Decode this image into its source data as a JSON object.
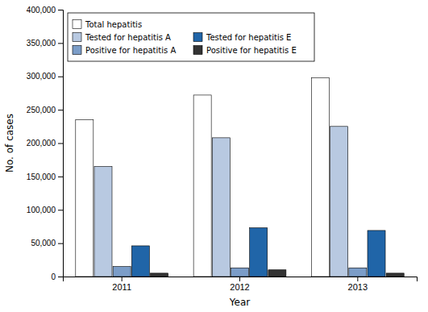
{
  "chart_data": {
    "type": "bar",
    "xlabel": "Year",
    "ylabel": "No. of cases",
    "categories": [
      "2011",
      "2012",
      "2013"
    ],
    "series": [
      {
        "name": "Total hepatitis",
        "color": "#ffffff",
        "values": [
          235000,
          272000,
          298000
        ]
      },
      {
        "name": "Tested for hepatitis A",
        "color": "#b8c9e1",
        "values": [
          165000,
          208000,
          225000
        ]
      },
      {
        "name": "Positive for hepatitis A",
        "color": "#7b9dc8",
        "values": [
          15000,
          13000,
          13000
        ]
      },
      {
        "name": "Tested for hepatitis E",
        "color": "#2065a8",
        "values": [
          46000,
          73000,
          69000
        ]
      },
      {
        "name": "Positive for hepatitis E",
        "color": "#333333",
        "values": [
          5000,
          10000,
          5000
        ]
      }
    ],
    "ylim": [
      0,
      400000
    ],
    "yticks": [
      0,
      {
        "value": 50000,
        "label": "50,000"
      },
      {
        "value": 100000,
        "label": "100,000"
      },
      {
        "value": 150000,
        "label": "150,000"
      },
      {
        "value": 200000,
        "label": "200,000"
      },
      {
        "value": 250000,
        "label": "250,000"
      },
      {
        "value": 300000,
        "label": "300,000"
      },
      {
        "value": 350000,
        "label": "350,000"
      },
      {
        "value": 400000,
        "label": "400,000"
      }
    ],
    "grid": false,
    "legend": "upper left"
  }
}
